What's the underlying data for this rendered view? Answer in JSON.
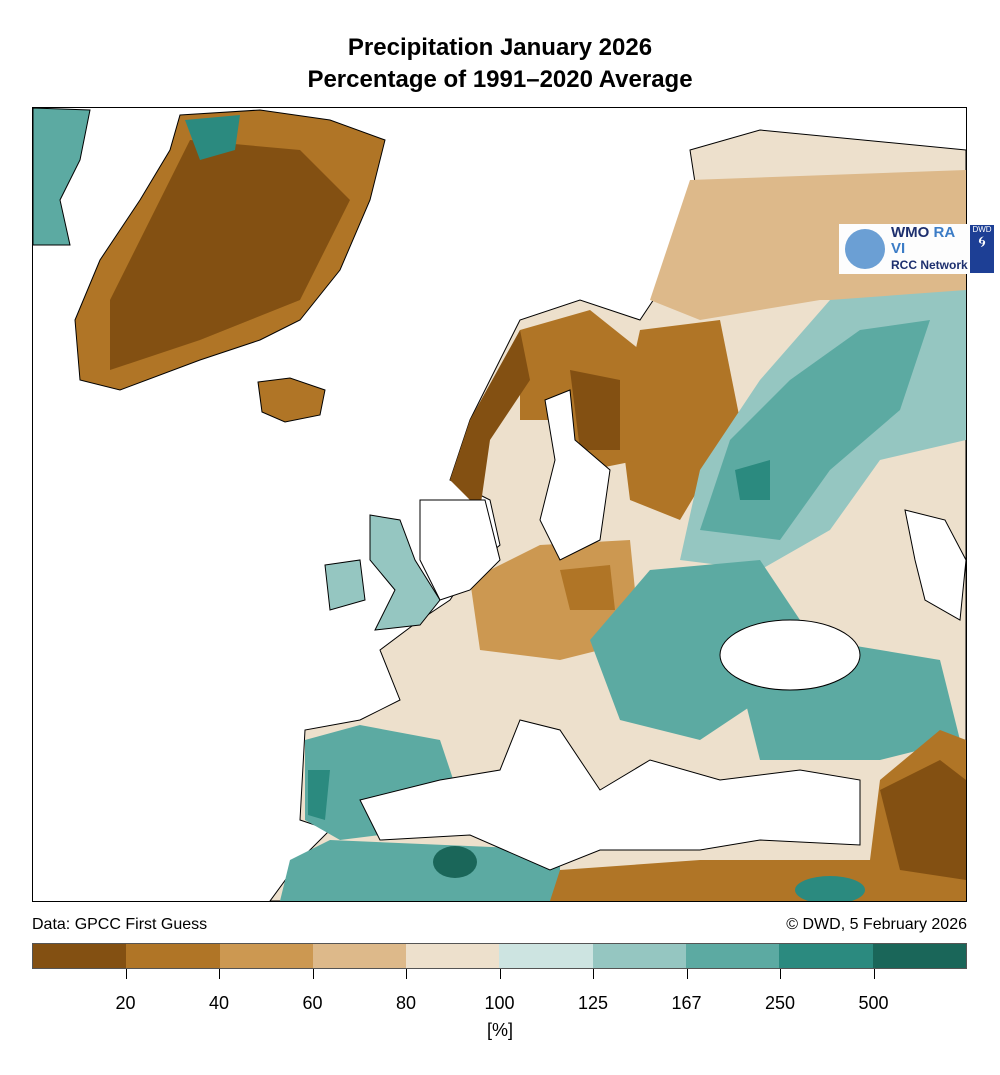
{
  "title": {
    "line1": "Precipitation January 2026",
    "line2": "Percentage of 1991–2020 Average"
  },
  "footer": {
    "source": "Data: GPCC First Guess",
    "credit": "© DWD, 5 February 2026"
  },
  "logo": {
    "wmo": "WMO",
    "ravi": "RA VI",
    "network": "RCC Network",
    "dwd": "DWD"
  },
  "legend": {
    "unit": "[%]",
    "ticks": [
      "20",
      "40",
      "60",
      "80",
      "100",
      "125",
      "167",
      "250",
      "500"
    ],
    "colors": [
      "#835012",
      "#b07526",
      "#cc9851",
      "#ddb98a",
      "#ede0cc",
      "#cde4e1",
      "#95c6c1",
      "#5caaa2",
      "#2b8a7f",
      "#1a6659"
    ]
  }
}
